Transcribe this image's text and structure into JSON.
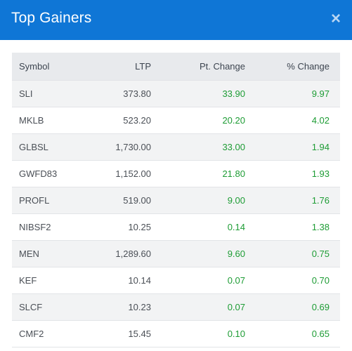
{
  "modal": {
    "title": "Top Gainers",
    "close_label": "×"
  },
  "table": {
    "headers": {
      "symbol": "Symbol",
      "ltp": "LTP",
      "pt_change": "Pt. Change",
      "pct_change": "% Change"
    },
    "rows": [
      {
        "symbol": "SLI",
        "ltp": "373.80",
        "pt_change": "33.90",
        "pct_change": "9.97"
      },
      {
        "symbol": "MKLB",
        "ltp": "523.20",
        "pt_change": "20.20",
        "pct_change": "4.02"
      },
      {
        "symbol": "GLBSL",
        "ltp": "1,730.00",
        "pt_change": "33.00",
        "pct_change": "1.94"
      },
      {
        "symbol": "GWFD83",
        "ltp": "1,152.00",
        "pt_change": "21.80",
        "pct_change": "1.93"
      },
      {
        "symbol": "PROFL",
        "ltp": "519.00",
        "pt_change": "9.00",
        "pct_change": "1.76"
      },
      {
        "symbol": "NIBSF2",
        "ltp": "10.25",
        "pt_change": "0.14",
        "pct_change": "1.38"
      },
      {
        "symbol": "MEN",
        "ltp": "1,289.60",
        "pt_change": "9.60",
        "pct_change": "0.75"
      },
      {
        "symbol": "KEF",
        "ltp": "10.14",
        "pt_change": "0.07",
        "pct_change": "0.70"
      },
      {
        "symbol": "SLCF",
        "ltp": "10.23",
        "pt_change": "0.07",
        "pct_change": "0.69"
      },
      {
        "symbol": "CMF2",
        "ltp": "15.45",
        "pt_change": "0.10",
        "pct_change": "0.65"
      }
    ]
  },
  "colors": {
    "header_bg": "#0f76d6",
    "positive": "#1d9c34"
  }
}
